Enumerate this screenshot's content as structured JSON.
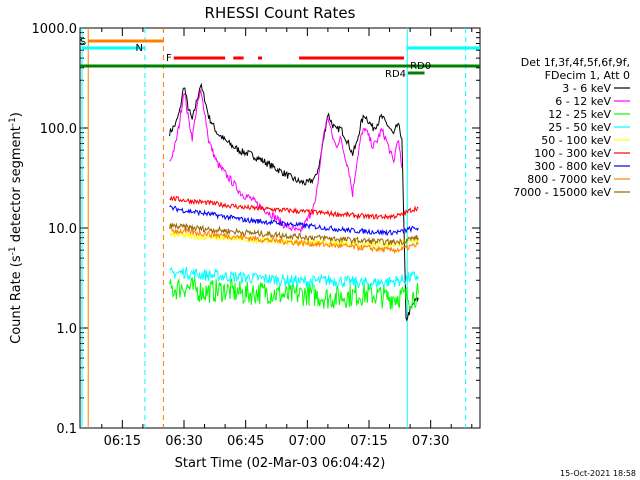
{
  "chart_data": {
    "type": "line",
    "title": "RHESSI Count Rates",
    "xlabel": "Start Time (02-Mar-03 06:04:42)",
    "ylabel_main": "Count Rate (s",
    "ylabel_sup1": "-1",
    "ylabel_mid": " detector segment",
    "ylabel_sup2": "-1",
    "ylabel_end": ")",
    "yscale": "log",
    "ylim": [
      0.1,
      1000
    ],
    "xlim_minutes": [
      6.1,
      6.75
    ],
    "xlim_note": "x axis spans ~06:04:42 to ~06:42:00 minutes since 06:00",
    "xlim_clock": [
      "06:04:42",
      "07:42:00"
    ],
    "x_ticks": [
      {
        "label": "06:15",
        "min": 15
      },
      {
        "label": "06:30",
        "min": 30
      },
      {
        "label": "06:45",
        "min": 45
      },
      {
        "label": "07:00",
        "min": 60
      },
      {
        "label": "07:15",
        "min": 75
      },
      {
        "label": "07:30",
        "min": 90
      }
    ],
    "y_ticks": [
      {
        "label": "1000.0",
        "value": 1000
      },
      {
        "label": "100.0",
        "value": 100
      },
      {
        "label": "10.0",
        "value": 10
      },
      {
        "label": "1.0",
        "value": 1
      },
      {
        "label": "0.1",
        "value": 0.1
      }
    ],
    "legend": {
      "header1": "Det 1f,3f,4f,5f,6f,9f,",
      "header2": "FDecim 1, Att 0",
      "entries": [
        {
          "label": "3 - 6 keV",
          "color": "#000000"
        },
        {
          "label": "6 - 12 keV",
          "color": "#ff00ff"
        },
        {
          "label": "12 - 25 keV",
          "color": "#00ff00"
        },
        {
          "label": "25 - 50 keV",
          "color": "#00ffff"
        },
        {
          "label": "50 - 100 keV",
          "color": "#ffff00"
        },
        {
          "label": "100 - 300 keV",
          "color": "#ff0000"
        },
        {
          "label": "300 - 800 keV",
          "color": "#0000ff"
        },
        {
          "label": "800 - 7000 keV",
          "color": "#ff8000"
        },
        {
          "label": "7000 - 15000 keV",
          "color": "#996600"
        }
      ]
    },
    "flags": [
      {
        "label": "S",
        "color": "#ff8000"
      },
      {
        "label": "N",
        "color": "#00ffff"
      },
      {
        "label": "F",
        "color": "#ff0000"
      },
      {
        "label": "RD0",
        "color": "#008000"
      },
      {
        "label": "RD4",
        "color": "#008000"
      }
    ],
    "series": [
      {
        "name": "3 - 6 keV",
        "color": "#000000",
        "points": [
          [
            26.5,
            90
          ],
          [
            28,
            110
          ],
          [
            29,
            150
          ],
          [
            30,
            270
          ],
          [
            31,
            160
          ],
          [
            32,
            120
          ],
          [
            33,
            180
          ],
          [
            34,
            270
          ],
          [
            35,
            200
          ],
          [
            36,
            130
          ],
          [
            38,
            90
          ],
          [
            40,
            75
          ],
          [
            42,
            65
          ],
          [
            44,
            58
          ],
          [
            46,
            55
          ],
          [
            48,
            50
          ],
          [
            50,
            45
          ],
          [
            52,
            40
          ],
          [
            54,
            36
          ],
          [
            56,
            32
          ],
          [
            58,
            29
          ],
          [
            60,
            28
          ],
          [
            62,
            32
          ],
          [
            63,
            45
          ],
          [
            64,
            80
          ],
          [
            65,
            140
          ],
          [
            66,
            110
          ],
          [
            67,
            95
          ],
          [
            68,
            100
          ],
          [
            69,
            85
          ],
          [
            70,
            70
          ],
          [
            71,
            55
          ],
          [
            72,
            70
          ],
          [
            73,
            110
          ],
          [
            74,
            135
          ],
          [
            75,
            115
          ],
          [
            76,
            100
          ],
          [
            77,
            110
          ],
          [
            78,
            130
          ],
          [
            79,
            115
          ],
          [
            80,
            100
          ],
          [
            81,
            85
          ],
          [
            82,
            110
          ],
          [
            83,
            80
          ],
          [
            84,
            1.2
          ],
          [
            85,
            1.5
          ],
          [
            86,
            1.8
          ],
          [
            87,
            2.0
          ]
        ]
      },
      {
        "name": "6 - 12 keV",
        "color": "#ff00ff",
        "points": [
          [
            26.5,
            45
          ],
          [
            28,
            70
          ],
          [
            29,
            120
          ],
          [
            30,
            240
          ],
          [
            31,
            130
          ],
          [
            32,
            80
          ],
          [
            33,
            150
          ],
          [
            34,
            230
          ],
          [
            35,
            150
          ],
          [
            36,
            75
          ],
          [
            38,
            45
          ],
          [
            40,
            35
          ],
          [
            42,
            28
          ],
          [
            44,
            22
          ],
          [
            46,
            20
          ],
          [
            48,
            17
          ],
          [
            50,
            15
          ],
          [
            52,
            13
          ],
          [
            54,
            11
          ],
          [
            56,
            10
          ],
          [
            58,
            9
          ],
          [
            60,
            12
          ],
          [
            62,
            18
          ],
          [
            63,
            40
          ],
          [
            64,
            90
          ],
          [
            65,
            130
          ],
          [
            66,
            85
          ],
          [
            67,
            65
          ],
          [
            68,
            80
          ],
          [
            69,
            55
          ],
          [
            70,
            40
          ],
          [
            71,
            22
          ],
          [
            72,
            45
          ],
          [
            73,
            80
          ],
          [
            74,
            100
          ],
          [
            75,
            80
          ],
          [
            76,
            65
          ],
          [
            77,
            75
          ],
          [
            78,
            95
          ],
          [
            79,
            80
          ],
          [
            80,
            60
          ],
          [
            81,
            45
          ],
          [
            82,
            80
          ],
          [
            83,
            40
          ]
        ]
      },
      {
        "name": "12 - 25 keV",
        "color": "#00ff00",
        "points": [
          [
            26.5,
            2.4
          ],
          [
            30,
            2.6
          ],
          [
            35,
            2.3
          ],
          [
            40,
            2.4
          ],
          [
            45,
            2.2
          ],
          [
            50,
            2.3
          ],
          [
            55,
            2.1
          ],
          [
            60,
            2.2
          ],
          [
            65,
            2.0
          ],
          [
            70,
            2.1
          ],
          [
            75,
            2.2
          ],
          [
            80,
            2.0
          ],
          [
            83,
            2.1
          ],
          [
            85,
            2.0
          ],
          [
            87,
            2.2
          ]
        ]
      },
      {
        "name": "25 - 50 keV",
        "color": "#00ffff",
        "points": [
          [
            26.5,
            3.5
          ],
          [
            30,
            3.6
          ],
          [
            35,
            3.4
          ],
          [
            40,
            3.3
          ],
          [
            45,
            3.2
          ],
          [
            50,
            3.1
          ],
          [
            55,
            3.0
          ],
          [
            60,
            2.9
          ],
          [
            65,
            3.0
          ],
          [
            70,
            2.9
          ],
          [
            75,
            2.8
          ],
          [
            80,
            2.9
          ],
          [
            83,
            3.0
          ],
          [
            85,
            3.2
          ],
          [
            87,
            3.3
          ]
        ]
      },
      {
        "name": "50 - 100 keV",
        "color": "#ffff00",
        "points": [
          [
            26.5,
            8.5
          ],
          [
            30,
            8.4
          ],
          [
            35,
            8.1
          ],
          [
            40,
            7.9
          ],
          [
            45,
            7.7
          ],
          [
            50,
            7.5
          ],
          [
            55,
            7.3
          ],
          [
            60,
            7.2
          ],
          [
            65,
            7.1
          ],
          [
            70,
            7.0
          ],
          [
            75,
            6.9
          ],
          [
            80,
            6.8
          ],
          [
            83,
            7.0
          ],
          [
            85,
            7.4
          ],
          [
            87,
            7.6
          ]
        ]
      },
      {
        "name": "100 - 300 keV",
        "color": "#ff0000",
        "points": [
          [
            26.5,
            20
          ],
          [
            30,
            19
          ],
          [
            35,
            18
          ],
          [
            40,
            17
          ],
          [
            45,
            16
          ],
          [
            50,
            15.5
          ],
          [
            55,
            15
          ],
          [
            60,
            14.5
          ],
          [
            65,
            14
          ],
          [
            70,
            13.5
          ],
          [
            75,
            13
          ],
          [
            80,
            13
          ],
          [
            83,
            13.5
          ],
          [
            85,
            15
          ],
          [
            87,
            16
          ]
        ]
      },
      {
        "name": "300 - 800 keV",
        "color": "#0000ff",
        "points": [
          [
            26.5,
            16
          ],
          [
            30,
            15
          ],
          [
            35,
            14
          ],
          [
            40,
            13
          ],
          [
            45,
            12
          ],
          [
            50,
            11.5
          ],
          [
            55,
            11
          ],
          [
            60,
            10.5
          ],
          [
            65,
            10
          ],
          [
            70,
            9.5
          ],
          [
            75,
            9.2
          ],
          [
            80,
            9.0
          ],
          [
            83,
            9.2
          ],
          [
            85,
            9.8
          ],
          [
            87,
            10
          ]
        ]
      },
      {
        "name": "800 - 7000 keV",
        "color": "#ff8000",
        "points": [
          [
            26.5,
            9.5
          ],
          [
            30,
            9.2
          ],
          [
            35,
            8.8
          ],
          [
            40,
            8.4
          ],
          [
            45,
            8.0
          ],
          [
            50,
            7.6
          ],
          [
            55,
            7.3
          ],
          [
            60,
            7.0
          ],
          [
            65,
            6.8
          ],
          [
            70,
            6.5
          ],
          [
            75,
            6.3
          ],
          [
            80,
            6.0
          ],
          [
            83,
            6.1
          ],
          [
            85,
            6.5
          ],
          [
            87,
            6.8
          ]
        ]
      },
      {
        "name": "7000 - 15000 keV",
        "color": "#996600",
        "points": [
          [
            26.5,
            10.5
          ],
          [
            30,
            10.2
          ],
          [
            35,
            9.8
          ],
          [
            40,
            9.4
          ],
          [
            45,
            9.0
          ],
          [
            50,
            8.7
          ],
          [
            55,
            8.4
          ],
          [
            60,
            8.1
          ],
          [
            65,
            7.9
          ],
          [
            70,
            7.6
          ],
          [
            75,
            7.4
          ],
          [
            80,
            7.2
          ],
          [
            83,
            7.3
          ],
          [
            85,
            7.8
          ],
          [
            87,
            8.0
          ]
        ]
      }
    ]
  },
  "footer": {
    "timestamp": "15-Oct-2021 18:58"
  }
}
